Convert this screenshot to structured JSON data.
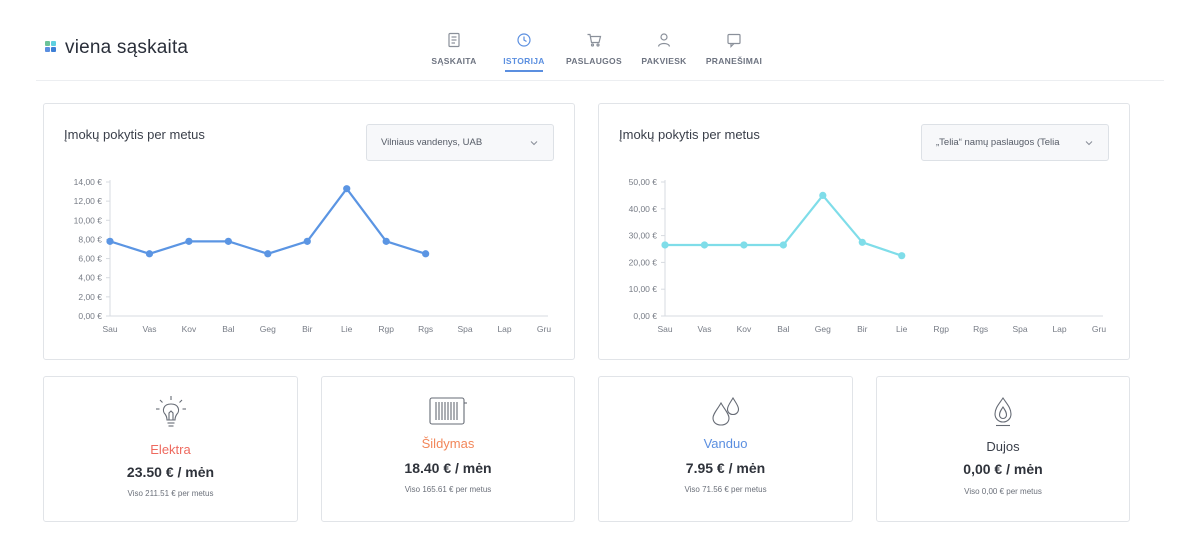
{
  "brand": {
    "name": "viena sąskaita",
    "colors": [
      "#6cc39a",
      "#5b8fe0",
      "#5fd0e0",
      "#3d7fd6"
    ]
  },
  "nav": {
    "items": [
      {
        "label": "SĄSKAITA",
        "icon": "document-icon",
        "active": false
      },
      {
        "label": "ISTORIJA",
        "icon": "clock-icon",
        "active": true
      },
      {
        "label": "PASLAUGOS",
        "icon": "cart-icon",
        "active": false
      },
      {
        "label": "PAKVIESK",
        "icon": "user-icon",
        "active": false
      },
      {
        "label": "PRANEŠIMAI",
        "icon": "message-icon",
        "active": false
      }
    ]
  },
  "charts": {
    "left": {
      "title": "Įmokų pokytis per metus",
      "dropdown": "Vilniaus vandenys, UAB"
    },
    "right": {
      "title": "Įmokų pokytis per metus",
      "dropdown": "„Telia“ namų paslaugos (Telia"
    }
  },
  "chart_data": [
    {
      "type": "line",
      "color": "#5b95e3",
      "categories": [
        "Sau",
        "Vas",
        "Kov",
        "Bal",
        "Geg",
        "Bir",
        "Lie",
        "Rgp",
        "Rgs",
        "Spa",
        "Lap",
        "Gru"
      ],
      "values": [
        7.8,
        6.5,
        7.8,
        7.8,
        6.5,
        7.8,
        13.3,
        7.8,
        6.5,
        null,
        null,
        null
      ],
      "ylim": [
        0,
        14
      ],
      "yticks": [
        "0,00 €",
        "2,00 €",
        "4,00 €",
        "6,00 €",
        "8,00 €",
        "10,00 €",
        "12,00 €",
        "14,00 €"
      ],
      "grid": false
    },
    {
      "type": "line",
      "color": "#7fdde9",
      "categories": [
        "Sau",
        "Vas",
        "Kov",
        "Bal",
        "Geg",
        "Bir",
        "Lie",
        "Rgp",
        "Rgs",
        "Spa",
        "Lap",
        "Gru"
      ],
      "values": [
        26.5,
        26.5,
        26.5,
        26.5,
        45,
        27.5,
        22.5,
        null,
        null,
        null,
        null,
        null
      ],
      "ylim": [
        0,
        50
      ],
      "yticks": [
        "0,00 €",
        "10,00 €",
        "20,00 €",
        "30,00 €",
        "40,00 €",
        "50,00 €"
      ],
      "grid": false
    }
  ],
  "stats": [
    {
      "name": "Elektra",
      "color": "#ee6a5f",
      "value": "23.50 € / mėn",
      "sub": "Viso 211.51 € per metus",
      "icon": "lightbulb-icon"
    },
    {
      "name": "Šildymas",
      "color": "#f2875a",
      "value": "18.40 € / mėn",
      "sub": "Viso 165.61 € per metus",
      "icon": "radiator-icon"
    },
    {
      "name": "Vanduo",
      "color": "#5b8fe0",
      "value": "7.95 € / mėn",
      "sub": "Viso 71.56 € per metus",
      "icon": "water-drops-icon"
    },
    {
      "name": "Dujos",
      "color": "#3a3f4a",
      "value": "0,00 € / mėn",
      "sub": "Viso 0,00 € per metus",
      "icon": "gas-flame-icon"
    }
  ]
}
